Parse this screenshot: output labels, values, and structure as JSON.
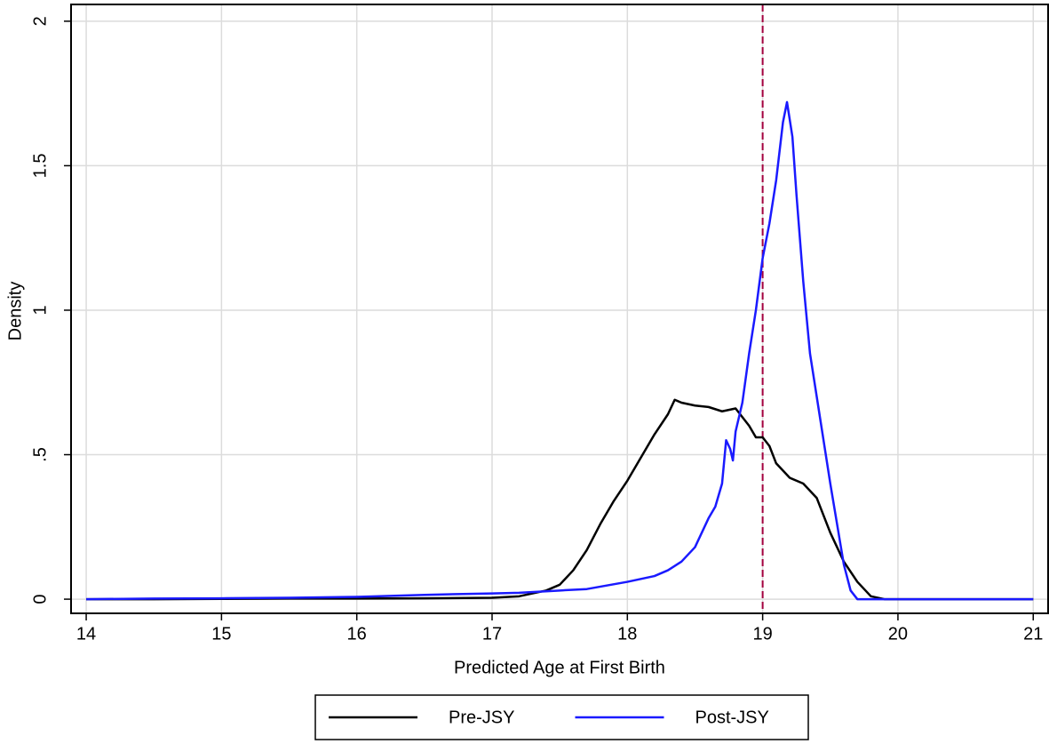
{
  "chart_data": {
    "type": "line",
    "xlabel": "Predicted Age at First Birth",
    "ylabel": "Density",
    "xlim": [
      13.888,
      21.11
    ],
    "ylim": [
      -0.049,
      2.058
    ],
    "xticks": [
      14,
      15,
      16,
      17,
      18,
      19,
      20,
      21
    ],
    "yticks": [
      0,
      {
        "value": 0.5,
        "label": ".5"
      },
      1,
      1.5,
      2
    ],
    "grid": true,
    "legend": "bottom",
    "vline": {
      "value": 19,
      "color": "#a3003e"
    },
    "series": [
      {
        "name": "Pre-JSY",
        "color": "#000000",
        "x": [
          14,
          14.5,
          15,
          15.5,
          16,
          16.5,
          17,
          17.2,
          17.3,
          17.4,
          17.5,
          17.6,
          17.7,
          17.8,
          17.9,
          18.0,
          18.1,
          18.2,
          18.3,
          18.35,
          18.4,
          18.5,
          18.6,
          18.7,
          18.8,
          18.9,
          18.95,
          19.0,
          19.05,
          19.1,
          19.2,
          19.3,
          19.4,
          19.5,
          19.6,
          19.7,
          19.8,
          19.9,
          20,
          20.5,
          21
        ],
        "values": [
          0,
          0,
          0.001,
          0.002,
          0.002,
          0.003,
          0.005,
          0.01,
          0.02,
          0.03,
          0.05,
          0.1,
          0.17,
          0.26,
          0.34,
          0.41,
          0.49,
          0.57,
          0.64,
          0.69,
          0.68,
          0.67,
          0.665,
          0.65,
          0.66,
          0.6,
          0.56,
          0.56,
          0.53,
          0.47,
          0.42,
          0.4,
          0.35,
          0.23,
          0.13,
          0.06,
          0.01,
          0,
          0,
          0,
          0
        ]
      },
      {
        "name": "Post-JSY",
        "color": "#1a1aff",
        "x": [
          14,
          14.5,
          15,
          15.5,
          16,
          16.5,
          17,
          17.2,
          17.5,
          17.7,
          18,
          18.2,
          18.3,
          18.4,
          18.5,
          18.6,
          18.65,
          18.7,
          18.73,
          18.76,
          18.78,
          18.8,
          18.85,
          18.9,
          18.95,
          19.0,
          19.05,
          19.1,
          19.15,
          19.18,
          19.22,
          19.25,
          19.3,
          19.35,
          19.4,
          19.5,
          19.6,
          19.65,
          19.7,
          20,
          21
        ],
        "values": [
          0,
          0.002,
          0.003,
          0.005,
          0.008,
          0.015,
          0.02,
          0.022,
          0.03,
          0.035,
          0.06,
          0.08,
          0.1,
          0.13,
          0.18,
          0.28,
          0.32,
          0.4,
          0.55,
          0.52,
          0.48,
          0.58,
          0.68,
          0.85,
          1.0,
          1.18,
          1.3,
          1.45,
          1.65,
          1.72,
          1.6,
          1.4,
          1.1,
          0.85,
          0.7,
          0.4,
          0.12,
          0.03,
          0,
          0,
          0
        ]
      }
    ]
  }
}
